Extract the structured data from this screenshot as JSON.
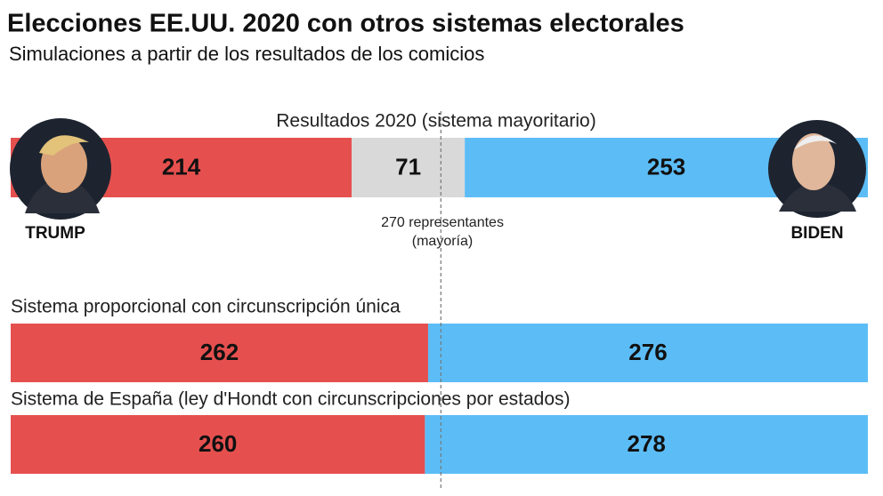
{
  "chart_data": {
    "type": "bar",
    "orientation": "horizontal",
    "stacked": true,
    "title": "Elecciones EE.UU. 2020 con otros sistemas electorales",
    "subtitle": "Simulaciones a partir de los resultados de los comicios",
    "categories": [
      "Resultados 2020 (sistema mayoritario)",
      "Sistema proporcional con circunscripción única",
      "Sistema de España (ley d'Hondt con circunscripciones por estados)"
    ],
    "series": [
      {
        "name": "TRUMP",
        "color": "#e5504e",
        "values": [
          214,
          262,
          260
        ]
      },
      {
        "color": "#d9d9d9",
        "values": [
          71,
          null,
          null
        ]
      },
      {
        "name": "BIDEN",
        "color": "#5cbdf6",
        "values": [
          253,
          276,
          278
        ]
      }
    ],
    "xlim": [
      0,
      538
    ],
    "majority_line": 270,
    "annotation": [
      "270 representantes",
      "(mayoría)"
    ]
  }
}
